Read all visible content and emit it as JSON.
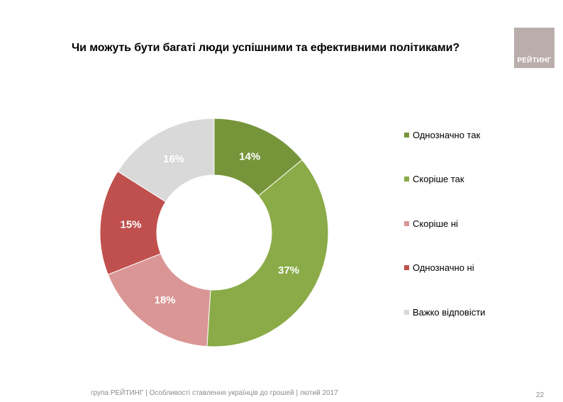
{
  "slide": {
    "title": "Чи можуть бути багаті люди успішними та ефективними політиками?",
    "logo_text": "РЕЙТИНГ",
    "footer": "група РЕЙТИНГ  |  Особливості ставлення українців до грошей |  лютий 2017",
    "page_number": "22",
    "colors": {
      "logo_bg": "#b9aeab",
      "footer_text": "#8c8c8c"
    }
  },
  "chart_data": {
    "type": "pie",
    "variant": "donut",
    "title": "Чи можуть бути багаті люди успішними та ефективними політиками?",
    "legend_position": "right",
    "categories": [
      "Однозначно так",
      "Скоріше так",
      "Скоріше ні",
      "Однозначно ні",
      "Важко відповісти"
    ],
    "values": [
      14,
      37,
      18,
      15,
      16
    ],
    "labels": [
      "14%",
      "37%",
      "18%",
      "15%",
      "16%"
    ],
    "colors": [
      "#76953b",
      "#8aab47",
      "#da9694",
      "#c0504d",
      "#d9d9d9"
    ]
  }
}
